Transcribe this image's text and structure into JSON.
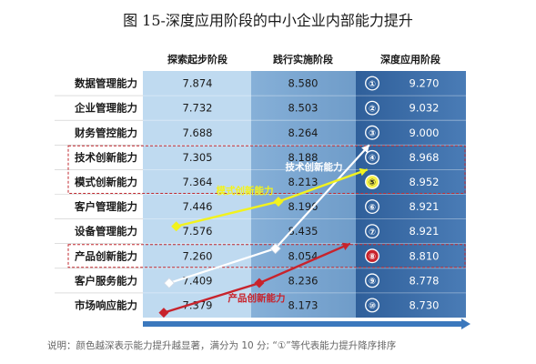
{
  "title": "图 15-深度应用阶段的中小企业内部能力提升",
  "note": "说明：颜色越深表示能力提升越显著，满分为 10 分; “①”等代表能力提升降序排序",
  "colors": {
    "stage1": "#bfdaf0",
    "stage2": "#7fa9d2",
    "stage3": "#3f6ea6",
    "arrow": "#2f6fb7",
    "highlight_box": "#c0282f",
    "line_innovation": "#ffffff",
    "line_mode": "#f2f21e",
    "line_product": "#c8232c"
  },
  "chart_data": {
    "type": "table",
    "columns": [
      "探索起步阶段",
      "践行实施阶段",
      "深度应用阶段"
    ],
    "rows": [
      {
        "label": "数据管理能力",
        "rank": "①",
        "values": [
          7.874,
          8.58,
          9.27
        ]
      },
      {
        "label": "企业管理能力",
        "rank": "②",
        "values": [
          7.732,
          8.503,
          9.032
        ]
      },
      {
        "label": "财务管控能力",
        "rank": "③",
        "values": [
          7.688,
          8.264,
          9.0
        ]
      },
      {
        "label": "技术创新能力",
        "rank": "④",
        "values": [
          7.305,
          8.188,
          8.968
        ]
      },
      {
        "label": "模式创新能力",
        "rank": "⑤",
        "values": [
          7.364,
          8.213,
          8.952
        ]
      },
      {
        "label": "客户管理能力",
        "rank": "⑥",
        "values": [
          7.446,
          8.196,
          8.921
        ]
      },
      {
        "label": "设备管理能力",
        "rank": "⑦",
        "values": [
          7.576,
          8.435,
          8.921
        ]
      },
      {
        "label": "产品创新能力",
        "rank": "⑧",
        "values": [
          7.26,
          8.054,
          8.81
        ]
      },
      {
        "label": "客户服务能力",
        "rank": "⑨",
        "values": [
          7.409,
          8.236,
          8.778
        ]
      },
      {
        "label": "市场响应能力",
        "rank": "⑩",
        "values": [
          7.379,
          8.173,
          8.73
        ]
      }
    ],
    "value_labels": [
      [
        "7.874",
        "8.580",
        "9.270"
      ],
      [
        "7.732",
        "8.503",
        "9.032"
      ],
      [
        "7.688",
        "8.264",
        "9.000"
      ],
      [
        "7.305",
        "8.188",
        "8.968"
      ],
      [
        "7.364",
        "8.213",
        "8.952"
      ],
      [
        "7.446",
        "8.196",
        "8.921"
      ],
      [
        "7.576",
        "8.435",
        "8.921"
      ],
      [
        "7.260",
        "8.054",
        "8.810"
      ],
      [
        "7.409",
        "8.236",
        "8.778"
      ],
      [
        "7.379",
        "8.173",
        "8.730"
      ]
    ],
    "highlighted_rows": [
      "技术创新能力",
      "模式创新能力",
      "产品创新能力"
    ],
    "series": [
      {
        "name": "技术创新能力",
        "row": 3,
        "color": "#ffffff",
        "values": [
          7.305,
          8.188,
          8.968
        ]
      },
      {
        "name": "模式创新能力",
        "row": 4,
        "color": "#f2f21e",
        "values": [
          7.364,
          8.213,
          8.952
        ]
      },
      {
        "name": "产品创新能力",
        "row": 7,
        "color": "#c8232c",
        "values": [
          7.26,
          8.054,
          8.81
        ]
      }
    ]
  }
}
